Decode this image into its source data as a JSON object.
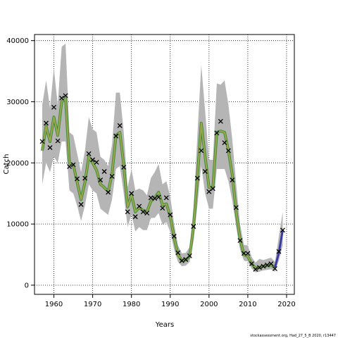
{
  "chart_data": {
    "type": "line",
    "title": "",
    "xlabel": "Years",
    "ylabel": "Catch",
    "xlim": [
      1955,
      2022
    ],
    "ylim": [
      -1500,
      41000
    ],
    "xticks": [
      1960,
      1970,
      1980,
      1990,
      2000,
      2010,
      2020
    ],
    "yticks": [
      0,
      10000,
      20000,
      30000,
      40000
    ],
    "grid": true,
    "legend": "none",
    "footer": "stockassessment.org, Had_27_5_B 2020, r13447",
    "colors": {
      "estimate": "#9aa64a",
      "estimate_outline": "#3a8a3a",
      "forecast": "#3a3aa0",
      "band": "#b5b5b5",
      "observed": "#000000"
    },
    "observed": {
      "marker": "x",
      "x": [
        1957,
        1958,
        1959,
        1960,
        1961,
        1962,
        1963,
        1964,
        1965,
        1966,
        1967,
        1968,
        1969,
        1970,
        1971,
        1972,
        1973,
        1974,
        1975,
        1976,
        1977,
        1978,
        1979,
        1980,
        1981,
        1982,
        1983,
        1984,
        1985,
        1986,
        1987,
        1988,
        1989,
        1990,
        1991,
        1992,
        1993,
        1994,
        1995,
        1996,
        1997,
        1998,
        1999,
        2000,
        2001,
        2002,
        2003,
        2004,
        2005,
        2006,
        2007,
        2008,
        2009,
        2010,
        2011,
        2012,
        2013,
        2014,
        2015,
        2016,
        2017,
        2018,
        2019
      ],
      "y": [
        23500,
        26500,
        22500,
        29100,
        23600,
        30600,
        31000,
        19400,
        19700,
        17400,
        13200,
        17500,
        21500,
        20500,
        20100,
        17200,
        18600,
        15200,
        17800,
        24400,
        26100,
        19300,
        12000,
        15000,
        11200,
        12900,
        12000,
        11800,
        14300,
        14200,
        14400,
        12600,
        14300,
        11500,
        8000,
        5300,
        4000,
        4200,
        4800,
        9600,
        17500,
        22000,
        18600,
        15300,
        15800,
        24900,
        26800,
        23300,
        22000,
        17200,
        12700,
        7300,
        5200,
        5200,
        3500,
        2600,
        2900,
        3100,
        3300,
        3500,
        2700,
        5500,
        9000
      ]
    },
    "estimate": {
      "x": [
        1957,
        1958,
        1959,
        1960,
        1961,
        1962,
        1963,
        1964,
        1965,
        1966,
        1967,
        1968,
        1969,
        1970,
        1971,
        1972,
        1973,
        1974,
        1975,
        1976,
        1977,
        1978,
        1979,
        1980,
        1981,
        1982,
        1983,
        1984,
        1985,
        1986,
        1987,
        1988,
        1989,
        1990,
        1991,
        1992,
        1993,
        1994,
        1995,
        1996,
        1997,
        1998,
        1999,
        2000,
        2001,
        2002,
        2003,
        2004,
        2005,
        2006,
        2007,
        2008,
        2009,
        2010,
        2011,
        2012,
        2013,
        2014,
        2015,
        2016,
        2017
      ],
      "y": [
        22000,
        26000,
        23500,
        27500,
        24500,
        30000,
        30500,
        20000,
        19700,
        16800,
        14000,
        16800,
        21000,
        20000,
        18800,
        16500,
        16000,
        15300,
        18200,
        24500,
        25000,
        19600,
        12800,
        14800,
        12000,
        12700,
        12200,
        12000,
        13700,
        14300,
        15200,
        13100,
        13300,
        11200,
        7800,
        5000,
        4000,
        4100,
        4700,
        9500,
        17500,
        26500,
        21000,
        16000,
        16000,
        25000,
        25200,
        25000,
        22000,
        18000,
        12000,
        7500,
        5000,
        4700,
        3500,
        2800,
        2900,
        3100,
        3200,
        3300,
        2900
      ]
    },
    "forecast": {
      "x": [
        2017,
        2018,
        2019
      ],
      "y": [
        2900,
        5300,
        9000
      ]
    },
    "band_upper": [
      29500,
      33500,
      29000,
      35500,
      29500,
      39000,
      39500,
      25000,
      24500,
      21500,
      18500,
      22000,
      27500,
      25500,
      25000,
      21000,
      20500,
      19500,
      23000,
      31500,
      31500,
      25000,
      16000,
      19000,
      15500,
      15800,
      15500,
      14700,
      17500,
      18500,
      19800,
      16500,
      17000,
      14500,
      10000,
      6500,
      5200,
      5300,
      6200,
      12500,
      24500,
      36000,
      28500,
      20500,
      20500,
      33000,
      32800,
      33500,
      29500,
      23800,
      16500,
      10000,
      6600,
      6500,
      4600,
      3700,
      4300,
      4100,
      4300,
      4500,
      3800,
      8000,
      12000
    ],
    "band_lower": [
      16500,
      20000,
      18500,
      21000,
      20000,
      23500,
      23500,
      15500,
      15000,
      13000,
      10500,
      13000,
      16500,
      15500,
      15000,
      12500,
      12000,
      11500,
      14000,
      19000,
      19500,
      15000,
      9500,
      11500,
      8800,
      9500,
      9000,
      9000,
      11000,
      11000,
      11800,
      9900,
      10300,
      8700,
      5800,
      3800,
      3100,
      3200,
      3800,
      7200,
      13000,
      19500,
      15000,
      12500,
      12500,
      19000,
      19000,
      19000,
      17000,
      13800,
      9500,
      5800,
      4000,
      3900,
      2700,
      2100,
      2200,
      2400,
      2500,
      2600,
      2200,
      4000,
      6500
    ]
  }
}
